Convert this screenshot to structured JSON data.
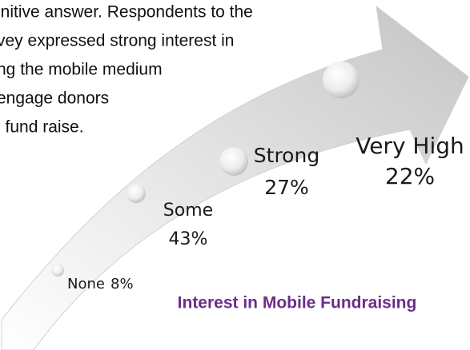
{
  "paragraph": [
    "initive answer.  Respondents to the",
    "vey expressed strong interest in",
    "ng the mobile medium",
    "engage donors",
    "l fund raise."
  ],
  "stages": [
    {
      "label": "None",
      "value": "8%"
    },
    {
      "label": "Some",
      "value": "43%"
    },
    {
      "label": "Strong",
      "value": "27%"
    },
    {
      "label": "Very High",
      "value": "22%"
    }
  ],
  "caption": "Interest in Mobile Fundraising"
}
